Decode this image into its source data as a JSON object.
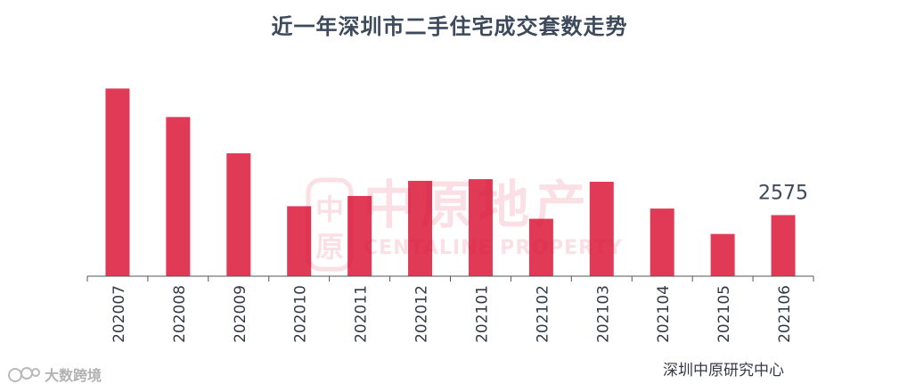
{
  "chart_data": {
    "type": "bar",
    "title": "近一年深圳市二手住宅成交套数走势",
    "categories": [
      "202007",
      "202008",
      "202009",
      "202010",
      "202011",
      "202012",
      "202101",
      "202102",
      "202103",
      "202104",
      "202105",
      "202106"
    ],
    "values": [
      7910,
      6710,
      5180,
      2950,
      3380,
      4020,
      4090,
      2420,
      3980,
      2850,
      1780,
      2575
    ],
    "data_labels": [
      {
        "index": 11,
        "text": "2575"
      }
    ],
    "xlabel": "",
    "ylabel": "",
    "ylim": [
      0,
      8000
    ],
    "grid": false,
    "legend": "none",
    "bar_color": "#e03a57"
  },
  "source": "深圳中原研究中心",
  "logo_text": "大数跨境",
  "watermark": {
    "cn": "中原地产",
    "en": "CENTALINE PROPERTY",
    "seal_glyphs": [
      "中",
      "原"
    ]
  },
  "colors": {
    "bar": "#e03a57",
    "title": "#3d4a5c",
    "axis": "#555555",
    "watermark": "#e0103a"
  }
}
